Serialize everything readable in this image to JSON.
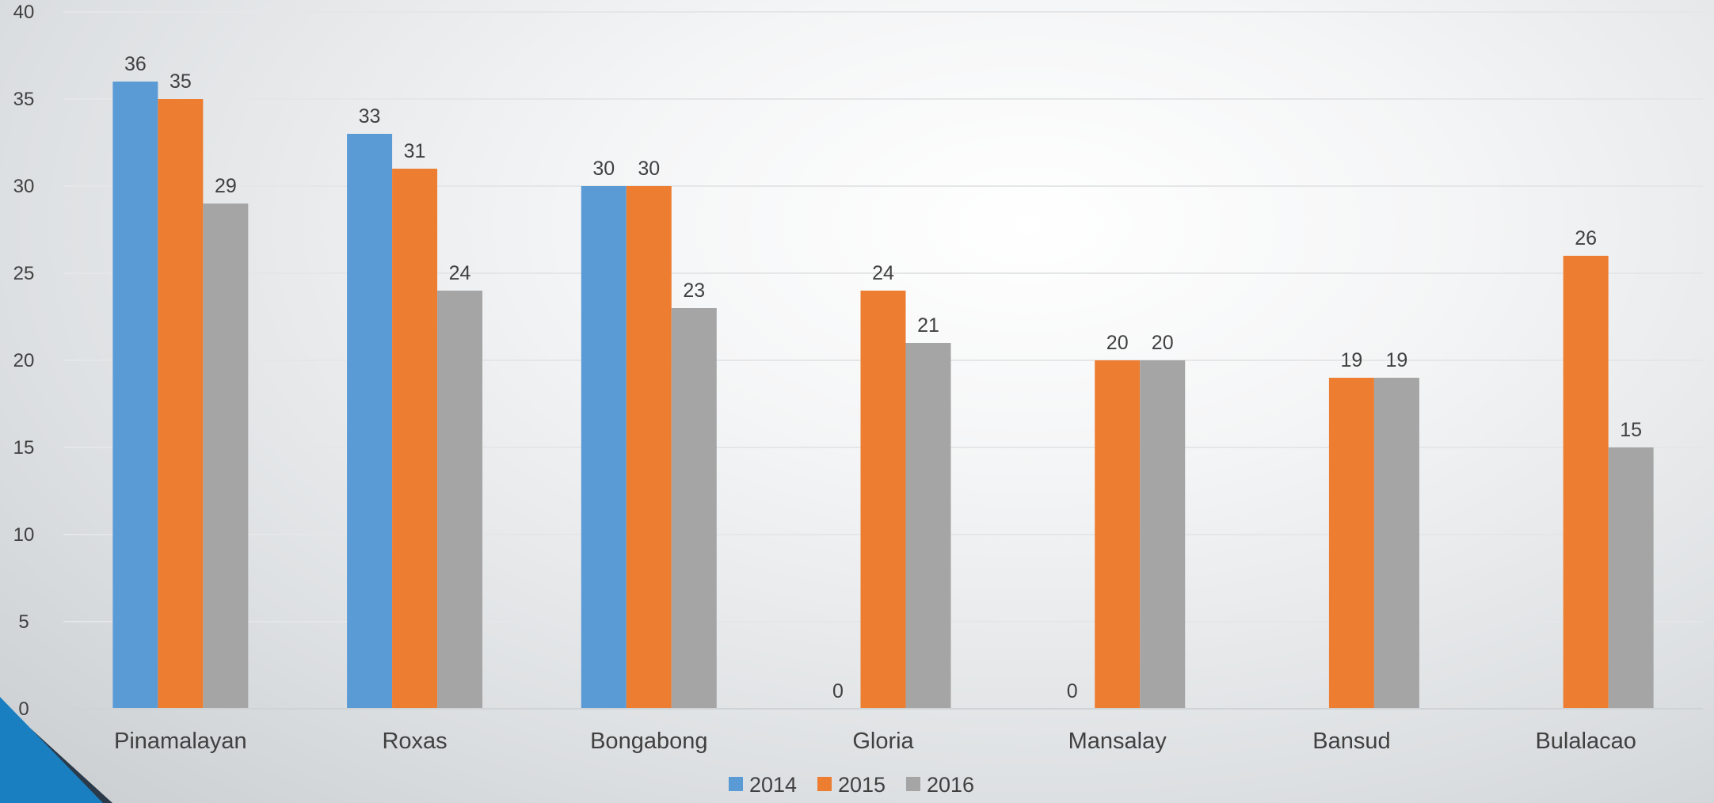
{
  "chart_data": {
    "type": "bar",
    "categories": [
      "Pinamalayan",
      "Roxas",
      "Bongabong",
      "Gloria",
      "Mansalay",
      "Bansud",
      "Bulalacao"
    ],
    "series": [
      {
        "name": "2014",
        "values": [
          36,
          33,
          30,
          0,
          0,
          null,
          null
        ],
        "color": "#5b9bd5"
      },
      {
        "name": "2015",
        "values": [
          35,
          31,
          30,
          24,
          20,
          19,
          26
        ],
        "color": "#ed7d31"
      },
      {
        "name": "2016",
        "values": [
          29,
          24,
          23,
          21,
          20,
          19,
          15
        ],
        "color": "#a5a5a5"
      }
    ],
    "yticks": [
      "0",
      "5",
      "10",
      "15",
      "20",
      "25",
      "30",
      "35",
      "40"
    ],
    "ylim": [
      0,
      40
    ],
    "grid": true,
    "legend_position": "bottom",
    "title": "",
    "xlabel": "",
    "ylabel": ""
  },
  "colors": {
    "accent_blue": "#1a7fc1",
    "accent_dark": "#2b3a4a",
    "gridline": "#e4e6e8",
    "label_text": "#404040"
  }
}
